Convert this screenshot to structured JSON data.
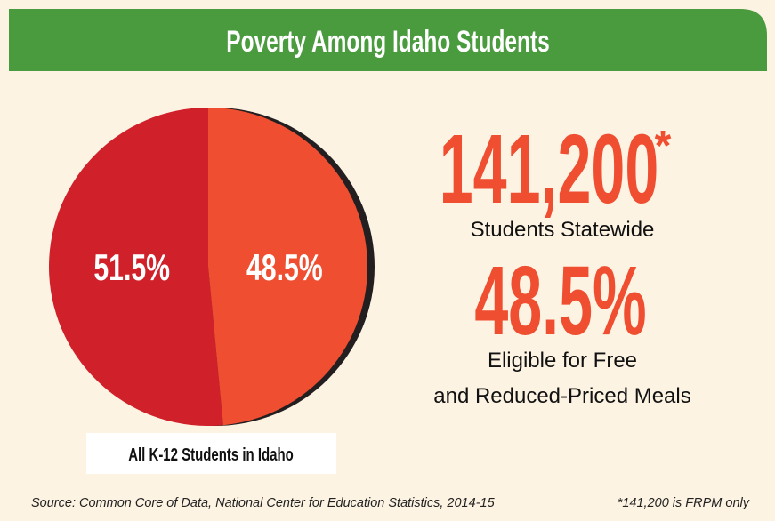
{
  "chart_data": {
    "type": "pie",
    "title": "Poverty Among Idaho Students",
    "values": [
      51.5,
      48.5
    ],
    "value_labels": [
      "51.5%",
      "48.5%"
    ],
    "colors": [
      "#d0202a",
      "#ef4e30"
    ],
    "caption": "All K-12 Students in Idaho",
    "stats": [
      {
        "value": 141200,
        "label": "141,200",
        "note": "*",
        "caption": [
          "Students Statewide"
        ]
      },
      {
        "value": 48.5,
        "label": "48.5%",
        "caption": [
          "Eligible for Free",
          "and Reduced-Priced Meals"
        ]
      }
    ],
    "source": "Source: Common Core of Data, National Center for Education Statistics, 2014-15",
    "footnote": "*141,200 is FRPM only"
  }
}
